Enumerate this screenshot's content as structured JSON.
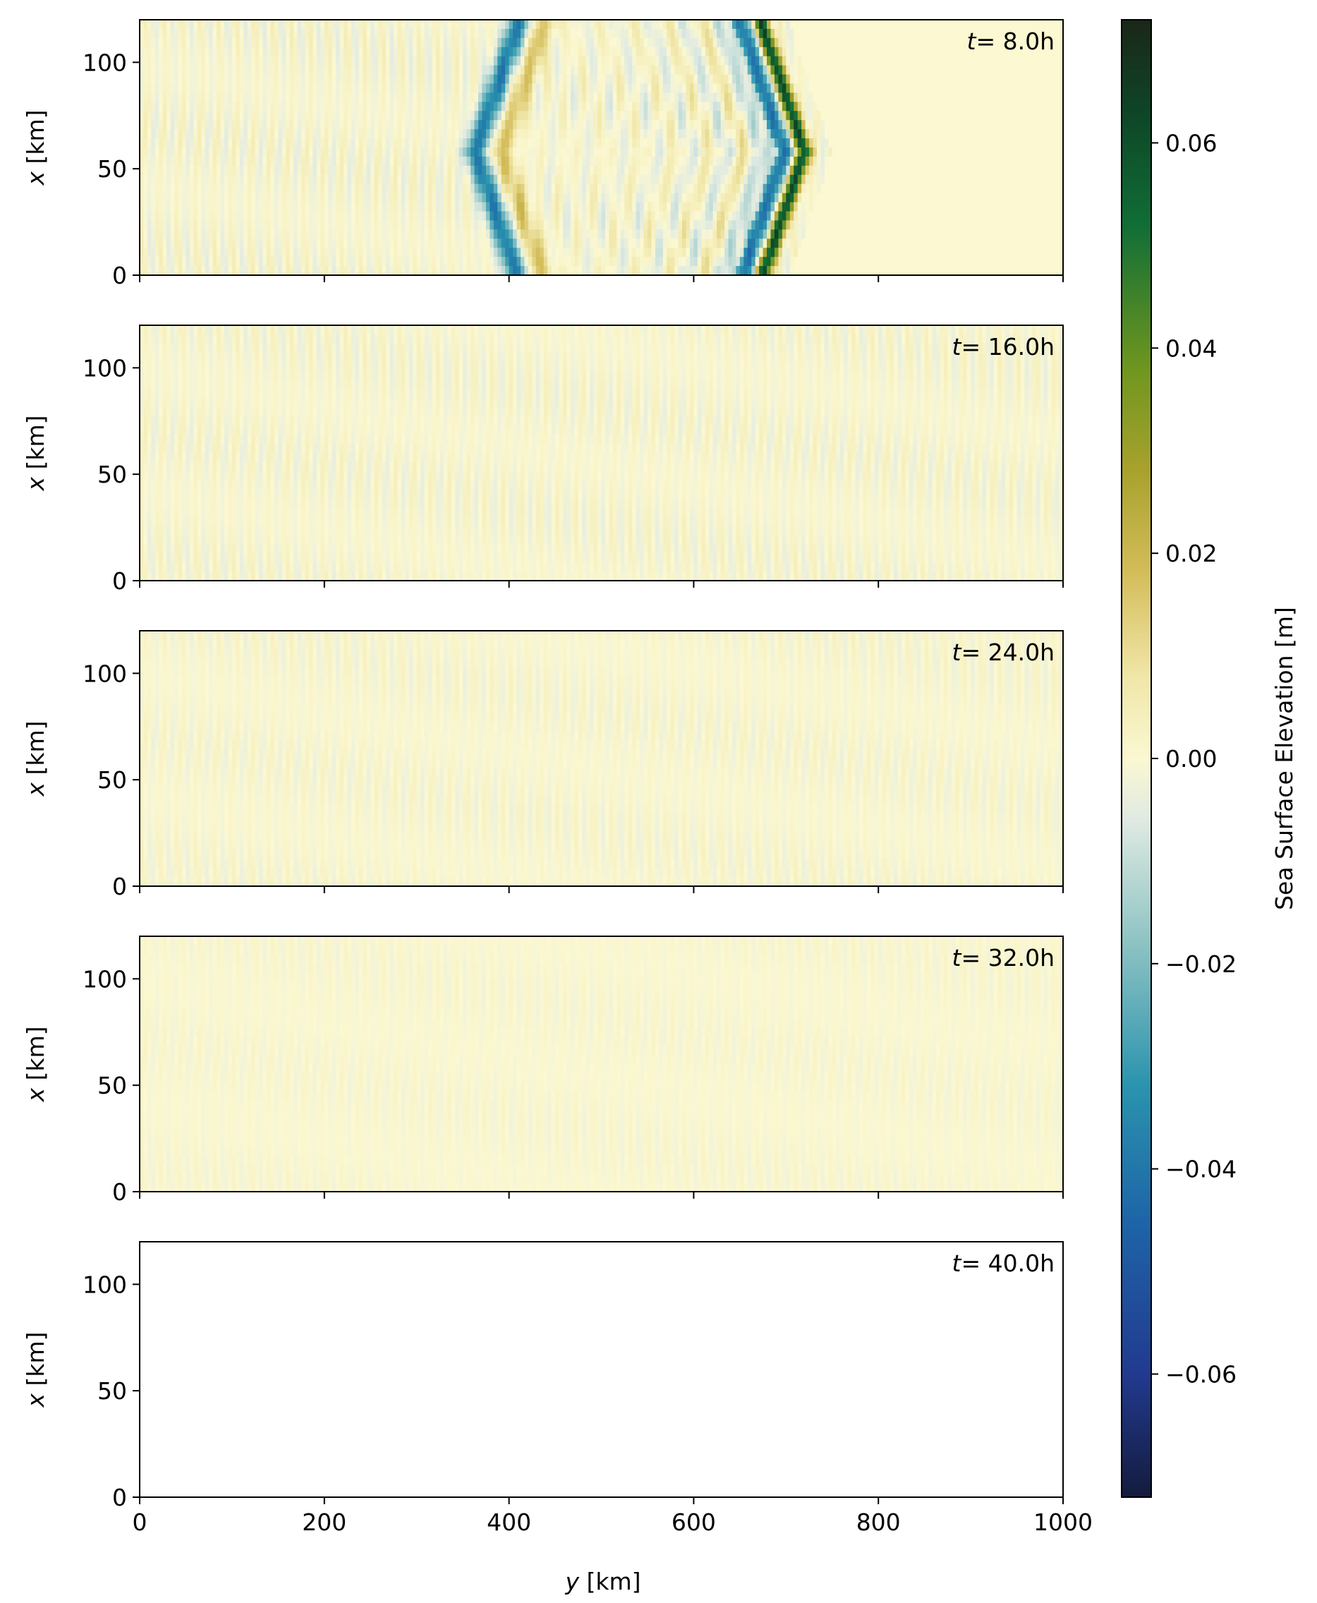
{
  "chart_data": {
    "type": "heatmap",
    "xlabel": "y [km]",
    "xlabel_var": "y",
    "xlabel_unit": " [km]",
    "ylabel": "x [km]",
    "ylabel_var": "x",
    "ylabel_unit": " [km]",
    "xlim": [
      0,
      1000
    ],
    "ylim": [
      0,
      120
    ],
    "xticks": [
      "0",
      "200",
      "400",
      "600",
      "800",
      "1000"
    ],
    "xtick_values": [
      0,
      200,
      400,
      600,
      800,
      1000
    ],
    "yticks": [
      "0",
      "50",
      "100"
    ],
    "ytick_values": [
      0,
      50,
      100
    ],
    "panels": [
      {
        "time_label": "= 8.0h",
        "time_var": "t",
        "front_y": 720,
        "wake_amp": 0.005,
        "blank": false
      },
      {
        "time_label": "= 16.0h",
        "time_var": "t",
        "wake_amp": 0.004,
        "blank": false
      },
      {
        "time_label": "= 24.0h",
        "time_var": "t",
        "wake_amp": 0.003,
        "blank": false
      },
      {
        "time_label": "= 32.0h",
        "time_var": "t",
        "wake_amp": 0.002,
        "blank": false
      },
      {
        "time_label": "= 40.0h",
        "time_var": "t",
        "wake_amp": 0,
        "blank": true
      }
    ],
    "colorbar": {
      "label": "Sea Surface Elevation [m]",
      "range": [
        -0.072,
        0.072
      ],
      "ticks": [
        "−0.06",
        "−0.04",
        "−0.02",
        "0.00",
        "0.02",
        "0.04",
        "0.06"
      ],
      "tick_values": [
        -0.06,
        -0.04,
        -0.02,
        0.0,
        0.02,
        0.04,
        0.06
      ],
      "colormap": [
        [
          -0.072,
          "#141b3d"
        ],
        [
          -0.06,
          "#223a8f"
        ],
        [
          -0.045,
          "#1e65a8"
        ],
        [
          -0.032,
          "#2a93ae"
        ],
        [
          -0.018,
          "#8dc3c3"
        ],
        [
          -0.006,
          "#dfeae2"
        ],
        [
          0.0,
          "#fbf8d2"
        ],
        [
          0.008,
          "#f0e6a8"
        ],
        [
          0.018,
          "#d4bd5a"
        ],
        [
          0.028,
          "#a8a22d"
        ],
        [
          0.038,
          "#6f961f"
        ],
        [
          0.052,
          "#106e36"
        ],
        [
          0.063,
          "#0e4527"
        ],
        [
          0.072,
          "#1b2718"
        ]
      ]
    }
  }
}
